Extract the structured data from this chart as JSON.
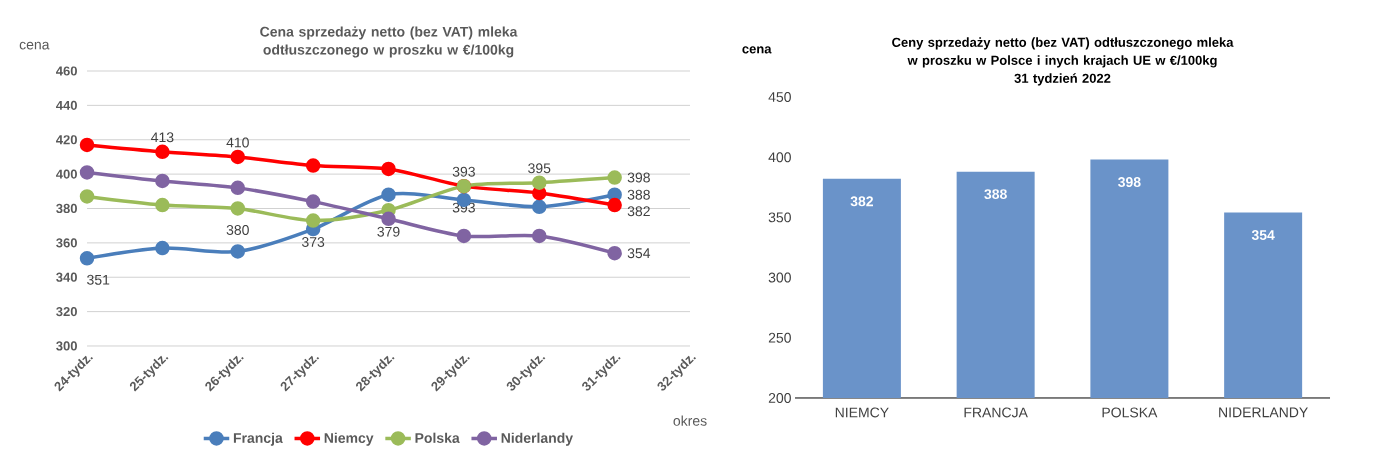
{
  "chart_data": [
    {
      "type": "line",
      "title": "Cena sprzedaży netto (bez VAT) mleka odtłuszczonego w proszku w €/100kg",
      "xlabel": "okres",
      "ylabel": "cena",
      "categories": [
        "24-tydz.",
        "25-tydz.",
        "26-tydz.",
        "27-tydz.",
        "28-tydz.",
        "29-tydz.",
        "30-tydz.",
        "31-tydz.",
        "32-tydz."
      ],
      "series": [
        {
          "name": "Francja",
          "color": "#4a7ebb",
          "values": [
            351,
            357,
            355,
            368,
            388,
            385,
            381,
            388,
            null
          ],
          "value_labels": [
            "351",
            null,
            null,
            null,
            null,
            null,
            null,
            "388",
            null
          ]
        },
        {
          "name": "Niemcy",
          "color": "#ff0000",
          "values": [
            417,
            413,
            410,
            405,
            403,
            393,
            389,
            382,
            null
          ],
          "value_labels": [
            null,
            "413",
            "410",
            null,
            null,
            "393",
            null,
            "382",
            null
          ]
        },
        {
          "name": "Polska",
          "color": "#9bbb59",
          "values": [
            387,
            382,
            380,
            373,
            379,
            393,
            395,
            398,
            null
          ],
          "value_labels": [
            null,
            null,
            "380",
            "373",
            "379",
            "393",
            "395",
            "398",
            null
          ]
        },
        {
          "name": "Niderlandy",
          "color": "#8064a2",
          "values": [
            401,
            396,
            392,
            384,
            374,
            364,
            364,
            354,
            null
          ],
          "value_labels": [
            null,
            null,
            null,
            null,
            null,
            null,
            null,
            "354",
            null
          ]
        }
      ],
      "ylim": [
        300,
        460
      ],
      "yticks": [
        300,
        320,
        340,
        360,
        380,
        400,
        420,
        440,
        460
      ],
      "grid": "y",
      "legend": "bottom",
      "marker": "circle"
    },
    {
      "type": "bar",
      "title": "Ceny sprzedaży netto (bez VAT) odtłuszczonego mleka w proszku w Polsce i inych krajach UE w €/100kg",
      "subtitle": "31 tydzień 2022",
      "ylabel": "cena",
      "categories": [
        "NIEMCY",
        "FRANCJA",
        "POLSKA",
        "NIDERLANDY"
      ],
      "values": [
        382,
        388,
        398,
        354
      ],
      "color": "#6a93c9",
      "ylim": [
        200,
        450
      ],
      "yticks": [
        200,
        250,
        300,
        350,
        400,
        450
      ],
      "data_labels": true
    }
  ]
}
